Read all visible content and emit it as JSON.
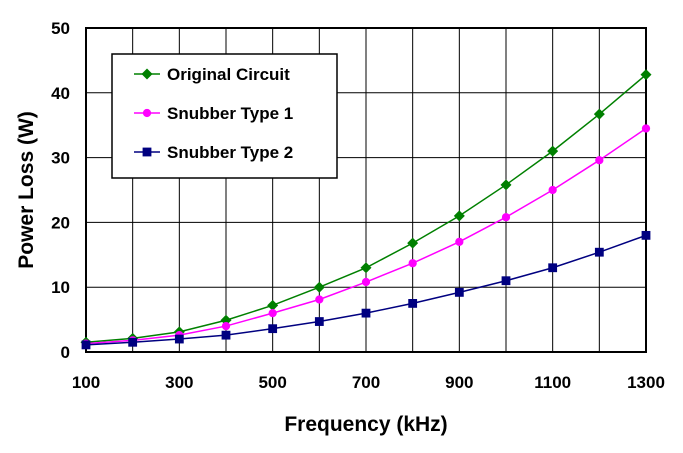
{
  "chart_data": {
    "type": "line",
    "xlabel": "Frequency (kHz)",
    "ylabel": "Power Loss (W)",
    "xlim": [
      100,
      1300
    ],
    "ylim": [
      0,
      50
    ],
    "x_ticks": [
      "100",
      "300",
      "500",
      "700",
      "900",
      "1100",
      "1300"
    ],
    "y_ticks": [
      "0",
      "10",
      "20",
      "30",
      "40",
      "50"
    ],
    "grid": true,
    "legend_position": "top-left",
    "x": [
      100,
      200,
      300,
      400,
      500,
      600,
      700,
      800,
      900,
      1000,
      1100,
      1200,
      1300
    ],
    "series": [
      {
        "name": "Original Circuit",
        "color": "#008000",
        "marker": "diamond",
        "values": [
          1.5,
          2.1,
          3.1,
          4.9,
          7.2,
          10.0,
          13.0,
          16.8,
          21.0,
          25.8,
          31.0,
          36.7,
          42.8
        ]
      },
      {
        "name": "Snubber Type 1",
        "color": "#FF00FF",
        "marker": "circle",
        "values": [
          1.3,
          1.8,
          2.6,
          4.0,
          6.0,
          8.1,
          10.8,
          13.7,
          17.0,
          20.8,
          25.0,
          29.6,
          34.5
        ]
      },
      {
        "name": "Snubber Type 2",
        "color": "#000080",
        "marker": "square",
        "values": [
          1.1,
          1.5,
          2.0,
          2.6,
          3.6,
          4.7,
          6.0,
          7.5,
          9.2,
          11.0,
          13.0,
          15.4,
          18.0
        ]
      }
    ]
  }
}
